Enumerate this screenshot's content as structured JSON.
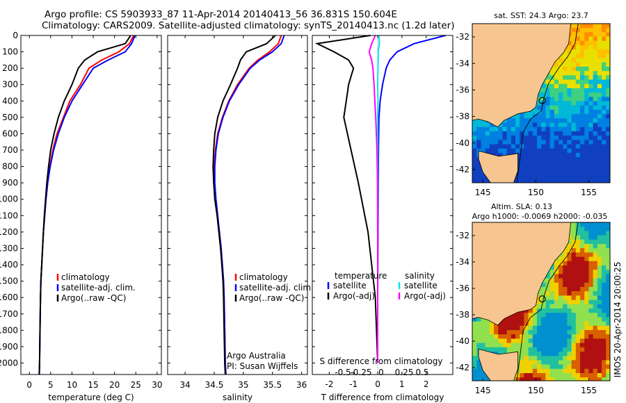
{
  "header": {
    "line1": "Argo profile: CS 5903933_87 11-Apr-2014 20140413_56 36.831S 150.604E",
    "line2": "Climatology: CARS2009. Satellite-adjusted climatology: synTS_20140413.nc (1.2d later)"
  },
  "depth_ticks": [
    "0",
    "100",
    "200",
    "300",
    "400",
    "500",
    "600",
    "700",
    "800",
    "900",
    "1000",
    "1100",
    "1200",
    "1300",
    "1400",
    "1500",
    "1600",
    "1700",
    "1800",
    "1900",
    "2000"
  ],
  "colors": {
    "climatology": "#ff0000",
    "satellite": "#0000ff",
    "argo": "#000000",
    "argo_salinity_diff": "#ff00ff",
    "satellite_salinity_diff": "#00e5ee",
    "land": "#f7c58f",
    "frame": "#000000"
  },
  "chart_data": [
    {
      "type": "line",
      "xlabel": "temperature (deg C)",
      "xlim": [
        -2,
        31
      ],
      "ylim": [
        2070,
        0
      ],
      "xticks": [
        0,
        5,
        10,
        15,
        20,
        25,
        30
      ],
      "xtick_labels": [
        "0",
        "5",
        "10",
        "15",
        "20",
        "25",
        "30"
      ],
      "legend_placement": "center",
      "series": [
        {
          "name": "climatology",
          "color": "#ff0000",
          "x": [
            24.5,
            23.5,
            21,
            17,
            14,
            12,
            9.5,
            8,
            6.5,
            5.5,
            4.8,
            4.3,
            3.9,
            3.6,
            3.3,
            3.1,
            2.9,
            2.7,
            2.6,
            2.5,
            2.4,
            2.3
          ],
          "y": [
            0,
            50,
            100,
            150,
            200,
            300,
            400,
            500,
            600,
            700,
            800,
            900,
            1000,
            1100,
            1200,
            1300,
            1400,
            1500,
            1600,
            1800,
            2000,
            2070
          ]
        },
        {
          "name": "satellite-adj. clim.",
          "color": "#0000ff",
          "x": [
            24.8,
            24,
            22.5,
            18.5,
            15,
            12.5,
            10,
            8.2,
            6.8,
            5.7,
            4.9,
            4.3,
            3.9,
            3.6,
            3.3,
            3.1,
            2.9,
            2.7,
            2.6,
            2.5,
            2.4,
            2.3
          ],
          "y": [
            0,
            50,
            100,
            150,
            200,
            300,
            400,
            500,
            600,
            700,
            800,
            900,
            1000,
            1100,
            1200,
            1300,
            1400,
            1500,
            1600,
            1800,
            2000,
            2070
          ]
        },
        {
          "name": "Argo(..raw -QC)",
          "color": "#000000",
          "x": [
            23.8,
            22.5,
            16,
            13,
            11.5,
            10,
            8.2,
            6.8,
            5.8,
            5,
            4.5,
            4.1,
            3.8,
            3.5,
            3.3,
            3.1,
            2.9,
            2.7,
            2.6,
            2.5,
            2.4,
            2.35
          ],
          "y": [
            0,
            50,
            100,
            150,
            200,
            300,
            400,
            500,
            600,
            700,
            800,
            900,
            1000,
            1100,
            1200,
            1300,
            1400,
            1500,
            1600,
            1800,
            2000,
            2070
          ]
        }
      ],
      "legend": [
        "climatology",
        "satellite-adj. clim.",
        "Argo(..raw -QC)"
      ]
    },
    {
      "type": "line",
      "xlabel": "salinity",
      "xlim": [
        33.7,
        36.1
      ],
      "ylim": [
        2070,
        0
      ],
      "xticks": [
        34,
        34.5,
        35,
        35.5,
        36
      ],
      "xtick_labels": [
        "34",
        "34.5",
        "35",
        "35.5",
        "36"
      ],
      "legend_placement": "center",
      "annotation": [
        "Argo Australia",
        "PI: Susan Wijffels"
      ],
      "series": [
        {
          "name": "climatology",
          "color": "#ff0000",
          "x": [
            35.65,
            35.6,
            35.45,
            35.25,
            35.1,
            34.9,
            34.75,
            34.64,
            34.56,
            34.52,
            34.5,
            34.5,
            34.52,
            34.55,
            34.58,
            34.61,
            34.64,
            34.66,
            34.67,
            34.68,
            34.69,
            34.7
          ],
          "y": [
            0,
            50,
            100,
            150,
            200,
            300,
            400,
            500,
            600,
            700,
            800,
            900,
            1000,
            1100,
            1200,
            1300,
            1400,
            1500,
            1600,
            1800,
            2000,
            2070
          ]
        },
        {
          "name": "satellite-adj. clim.",
          "color": "#0000ff",
          "x": [
            35.7,
            35.65,
            35.5,
            35.28,
            35.12,
            34.92,
            34.76,
            34.65,
            34.57,
            34.53,
            34.51,
            34.51,
            34.53,
            34.56,
            34.59,
            34.62,
            34.64,
            34.66,
            34.67,
            34.68,
            34.69,
            34.7
          ],
          "y": [
            0,
            50,
            100,
            150,
            200,
            300,
            400,
            500,
            600,
            700,
            800,
            900,
            1000,
            1100,
            1200,
            1300,
            1400,
            1500,
            1600,
            1800,
            2000,
            2070
          ]
        },
        {
          "name": "Argo(..raw -QC)",
          "color": "#000000",
          "x": [
            35.55,
            35.4,
            35.05,
            34.95,
            34.9,
            34.78,
            34.65,
            34.56,
            34.51,
            34.49,
            34.48,
            34.49,
            34.51,
            34.55,
            34.58,
            34.61,
            34.63,
            34.65,
            34.66,
            34.67,
            34.68,
            34.69
          ],
          "y": [
            0,
            50,
            100,
            150,
            200,
            300,
            400,
            500,
            600,
            700,
            800,
            900,
            1000,
            1100,
            1200,
            1300,
            1400,
            1500,
            1600,
            1800,
            2000,
            2070
          ]
        }
      ],
      "legend": [
        "climatology",
        "satellite-adj. clim.",
        "Argo(..raw -QC)"
      ]
    },
    {
      "type": "line",
      "xlabel": "T difference from climatology",
      "xlabel_top": "S difference from climatology",
      "xlim": [
        -2.7,
        3.1
      ],
      "ylim": [
        2070,
        0
      ],
      "xticks": [
        -2,
        -1,
        0,
        1,
        2
      ],
      "xtick_labels": [
        "-2",
        "-1",
        "0",
        "1",
        "2"
      ],
      "sticks": [
        -0.5,
        -0.25,
        0,
        0.25,
        0.5
      ],
      "stick_labels": [
        "-0.5",
        "-0.25",
        "0",
        "0.25",
        "0.5"
      ],
      "legend_placement": "center",
      "legend_titles": [
        "temperature",
        "salinity"
      ],
      "series": [
        {
          "name": "temperature satellite",
          "color": "#0000ff",
          "x": [
            2.8,
            1.5,
            0.8,
            0.5,
            0.35,
            0.2,
            0.1,
            0.05,
            0.03,
            0.02,
            0.01,
            0,
            0
          ],
          "y": [
            0,
            50,
            100,
            150,
            200,
            300,
            400,
            500,
            700,
            900,
            1200,
            1600,
            2000
          ]
        },
        {
          "name": "temperature Argo(-adj)",
          "color": "#000000",
          "x": [
            -0.3,
            -2.5,
            -1.8,
            -1.2,
            -1,
            -1.2,
            -1.3,
            -1.4,
            -1.1,
            -0.8,
            -0.4,
            -0.1,
            0
          ],
          "y": [
            0,
            50,
            100,
            150,
            200,
            300,
            400,
            500,
            700,
            900,
            1200,
            1600,
            2000
          ]
        },
        {
          "name": "salinity satellite",
          "color": "#00e5ee",
          "x": [
            0.05,
            0.07,
            0.02,
            0.02,
            0.01,
            0,
            0.01,
            0,
            0,
            0,
            0,
            0,
            0
          ],
          "y": [
            0,
            50,
            100,
            150,
            200,
            300,
            400,
            500,
            700,
            900,
            1200,
            1600,
            2000
          ]
        },
        {
          "name": "salinity Argo(-adj)",
          "color": "#ff00ff",
          "x": [
            -0.1,
            -0.25,
            -0.35,
            -0.25,
            -0.2,
            -0.15,
            -0.12,
            -0.08,
            -0.03,
            -0.01,
            0,
            0,
            0
          ],
          "y": [
            0,
            50,
            100,
            150,
            200,
            300,
            400,
            500,
            700,
            900,
            1200,
            1600,
            2000
          ]
        }
      ],
      "legend": [
        {
          "group": "temperature",
          "label": "satellite"
        },
        {
          "group": "temperature",
          "label": "Argo(-adj)"
        },
        {
          "group": "salinity",
          "label": "satellite"
        },
        {
          "group": "salinity",
          "label": "Argo(-adj)"
        }
      ]
    },
    {
      "type": "heatmap",
      "title": "sat. SST: 24.3 Argo: 23.7",
      "lon_range": [
        144,
        157
      ],
      "lat_range": [
        -43,
        -31
      ],
      "xticks": [
        145,
        150,
        155
      ],
      "yticks": [
        -32,
        -34,
        -36,
        -38,
        -40,
        -42
      ],
      "xtick_labels": [
        "145",
        "150",
        "155"
      ],
      "ytick_labels": [
        "-32",
        "-34",
        "-36",
        "-38",
        "-40",
        "-42"
      ],
      "float_position": {
        "lon": 150.6,
        "lat": -36.8
      }
    },
    {
      "type": "heatmap",
      "title_line1": "Altim. SLA: 0.13",
      "title_line2": "Argo h1000: -0.0069 h2000: -0.035",
      "lon_range": [
        144,
        157
      ],
      "lat_range": [
        -43,
        -31
      ],
      "xticks": [
        145,
        150,
        155
      ],
      "yticks": [
        -32,
        -34,
        -36,
        -38,
        -40,
        -42
      ],
      "xtick_labels": [
        "145",
        "150",
        "155"
      ],
      "ytick_labels": [
        "-32",
        "-34",
        "-36",
        "-38",
        "-40",
        "-42"
      ],
      "side_label": "IMOS 20-Apr-2014 20:00:25",
      "float_position": {
        "lon": 150.6,
        "lat": -36.8
      }
    }
  ]
}
